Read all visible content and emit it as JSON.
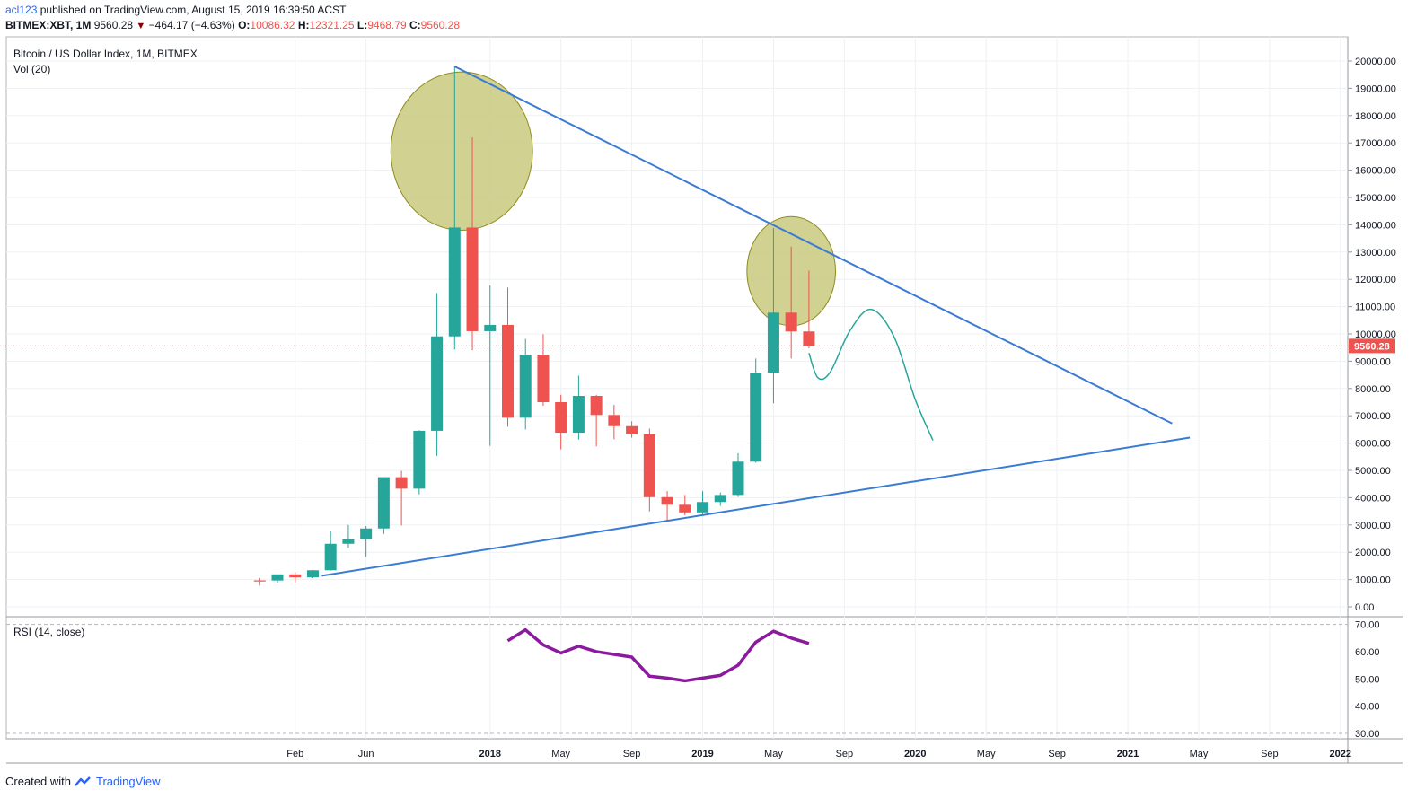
{
  "header": {
    "author": "acl123",
    "published_text": "published on TradingView.com, August 15, 2019 16:39:50 ACST",
    "symbol": "BITMEX:XBT, 1M",
    "last": "9560.28",
    "change": "−464.17 (−4.63%)",
    "open_label": "O:",
    "open": "10086.32",
    "high_label": "H:",
    "high": "12321.25",
    "low_label": "L:",
    "low": "9468.79",
    "close_label": "C:",
    "close": "9560.28"
  },
  "legend": {
    "series": "Bitcoin / US Dollar Index, 1M, BITMEX",
    "volume": "Vol (20)",
    "rsi": "RSI (14, close)"
  },
  "footer": {
    "created_with": "Created with",
    "brand": "TradingView"
  },
  "colors": {
    "up": "#26a69a",
    "down": "#ef5350",
    "trendline": "#3a7bd5",
    "ellipse_fill": "#c9c97f",
    "ellipse_stroke": "#8c8c1e",
    "projection": "#26a69a",
    "rsi": "#8b1a9e",
    "price_line": "#ef5350"
  },
  "chart_data": {
    "type": "candlestick",
    "price_axis": {
      "ticks": [
        0,
        1000,
        2000,
        3000,
        4000,
        5000,
        6000,
        7000,
        8000,
        9000,
        10000,
        11000,
        12000,
        13000,
        14000,
        15000,
        16000,
        17000,
        18000,
        19000,
        20000
      ],
      "tick_labels": [
        "0.00",
        "1000.00",
        "2000.00",
        "3000.00",
        "4000.00",
        "5000.00",
        "6000.00",
        "7000.00",
        "8000.00",
        "9000.00",
        "10000.00",
        "11000.00",
        "12000.00",
        "13000.00",
        "14000.00",
        "15000.00",
        "16000.00",
        "17000.00",
        "18000.00",
        "19000.00",
        "20000.00"
      ],
      "last_price_label": "9560.28",
      "last_price": 9560.28
    },
    "time_axis": {
      "labels": [
        "Feb",
        "Jun",
        "2018",
        "May",
        "Sep",
        "2019",
        "May",
        "Sep",
        "2020",
        "May",
        "Sep",
        "2021",
        "May",
        "Sep",
        "2022"
      ],
      "bold": [
        false,
        false,
        true,
        false,
        false,
        true,
        false,
        false,
        true,
        false,
        false,
        true,
        false,
        false,
        true
      ],
      "label_month_index": [
        1,
        5,
        12,
        16,
        20,
        24,
        28,
        32,
        36,
        40,
        44,
        48,
        52,
        56,
        60
      ]
    },
    "candles": [
      {
        "t": -1,
        "o": 970,
        "h": 1060,
        "l": 780,
        "c": 965
      },
      {
        "t": 0,
        "o": 965,
        "h": 1190,
        "l": 890,
        "c": 1190
      },
      {
        "t": 1,
        "o": 1190,
        "h": 1270,
        "l": 900,
        "c": 1080
      },
      {
        "t": 2,
        "o": 1080,
        "h": 1350,
        "l": 1050,
        "c": 1340
      },
      {
        "t": 3,
        "o": 1340,
        "h": 2760,
        "l": 1330,
        "c": 2310
      },
      {
        "t": 4,
        "o": 2310,
        "h": 3000,
        "l": 2160,
        "c": 2480
      },
      {
        "t": 5,
        "o": 2480,
        "h": 2960,
        "l": 1830,
        "c": 2870
      },
      {
        "t": 6,
        "o": 2870,
        "h": 4750,
        "l": 2670,
        "c": 4750
      },
      {
        "t": 7,
        "o": 4750,
        "h": 4980,
        "l": 2980,
        "c": 4330
      },
      {
        "t": 8,
        "o": 4330,
        "h": 6470,
        "l": 4120,
        "c": 6450
      },
      {
        "t": 9,
        "o": 6450,
        "h": 11500,
        "l": 5530,
        "c": 9910
      },
      {
        "t": 10,
        "o": 9910,
        "h": 19800,
        "l": 9430,
        "c": 13900
      },
      {
        "t": 11,
        "o": 13900,
        "h": 17200,
        "l": 9400,
        "c": 10100
      },
      {
        "t": 12,
        "o": 10100,
        "h": 11780,
        "l": 5900,
        "c": 10330
      },
      {
        "t": 13,
        "o": 10330,
        "h": 11700,
        "l": 6600,
        "c": 6930
      },
      {
        "t": 14,
        "o": 6930,
        "h": 9820,
        "l": 6500,
        "c": 9240
      },
      {
        "t": 15,
        "o": 9240,
        "h": 9990,
        "l": 7370,
        "c": 7500
      },
      {
        "t": 16,
        "o": 7500,
        "h": 7770,
        "l": 5770,
        "c": 6380
      },
      {
        "t": 17,
        "o": 6380,
        "h": 8470,
        "l": 6130,
        "c": 7730
      },
      {
        "t": 18,
        "o": 7730,
        "h": 7770,
        "l": 5880,
        "c": 7030
      },
      {
        "t": 19,
        "o": 7030,
        "h": 7400,
        "l": 6140,
        "c": 6620
      },
      {
        "t": 20,
        "o": 6620,
        "h": 6800,
        "l": 6200,
        "c": 6320
      },
      {
        "t": 21,
        "o": 6320,
        "h": 6530,
        "l": 3500,
        "c": 4020
      },
      {
        "t": 22,
        "o": 4020,
        "h": 4240,
        "l": 3150,
        "c": 3740
      },
      {
        "t": 23,
        "o": 3740,
        "h": 4100,
        "l": 3350,
        "c": 3460
      },
      {
        "t": 24,
        "o": 3460,
        "h": 4240,
        "l": 3400,
        "c": 3840
      },
      {
        "t": 25,
        "o": 3840,
        "h": 4190,
        "l": 3700,
        "c": 4100
      },
      {
        "t": 26,
        "o": 4100,
        "h": 5630,
        "l": 4030,
        "c": 5320
      },
      {
        "t": 27,
        "o": 5320,
        "h": 9100,
        "l": 5280,
        "c": 8580
      },
      {
        "t": 28,
        "o": 8580,
        "h": 13880,
        "l": 7460,
        "c": 10780
      },
      {
        "t": 29,
        "o": 10780,
        "h": 13200,
        "l": 9100,
        "c": 10090
      },
      {
        "t": 30,
        "o": 10090,
        "h": 12320,
        "l": 9470,
        "c": 9560
      }
    ],
    "trendlines": [
      {
        "name": "resistance",
        "from": {
          "t": 10,
          "p": 19800
        },
        "to": {
          "t": 50.5,
          "p": 6720
        }
      },
      {
        "name": "support",
        "from": {
          "t": 2.5,
          "p": 1140
        },
        "to": {
          "t": 51.5,
          "p": 6200
        }
      }
    ],
    "ellipses": [
      {
        "center": {
          "t": 10.4,
          "p": 16700
        },
        "rt": 4,
        "rp": 2900
      },
      {
        "center": {
          "t": 29,
          "p": 12300
        },
        "rt": 2.5,
        "rp": 2000
      }
    ],
    "projection": [
      {
        "t": 30,
        "p": 9300
      },
      {
        "t": 30.5,
        "p": 8400
      },
      {
        "t": 31.2,
        "p": 8600
      },
      {
        "t": 32.3,
        "p": 10100
      },
      {
        "t": 33.5,
        "p": 10900
      },
      {
        "t": 34.8,
        "p": 9900
      },
      {
        "t": 36,
        "p": 7600
      },
      {
        "t": 37,
        "p": 6100
      }
    ],
    "rsi": {
      "ticks": [
        30,
        40,
        50,
        60,
        70
      ],
      "tick_labels": [
        "30.00",
        "40.00",
        "50.00",
        "60.00",
        "70.00"
      ],
      "points": [
        {
          "t": 13,
          "v": 64
        },
        {
          "t": 14,
          "v": 68
        },
        {
          "t": 15,
          "v": 62.5
        },
        {
          "t": 16,
          "v": 59.5
        },
        {
          "t": 17,
          "v": 62
        },
        {
          "t": 18,
          "v": 60
        },
        {
          "t": 19,
          "v": 59
        },
        {
          "t": 20,
          "v": 58
        },
        {
          "t": 21,
          "v": 51
        },
        {
          "t": 22,
          "v": 50.3
        },
        {
          "t": 23,
          "v": 49.3
        },
        {
          "t": 24,
          "v": 50.3
        },
        {
          "t": 25,
          "v": 51.3
        },
        {
          "t": 26,
          "v": 55
        },
        {
          "t": 27,
          "v": 63.5
        },
        {
          "t": 28,
          "v": 67.5
        },
        {
          "t": 29,
          "v": 65
        },
        {
          "t": 30,
          "v": 63
        }
      ]
    }
  }
}
